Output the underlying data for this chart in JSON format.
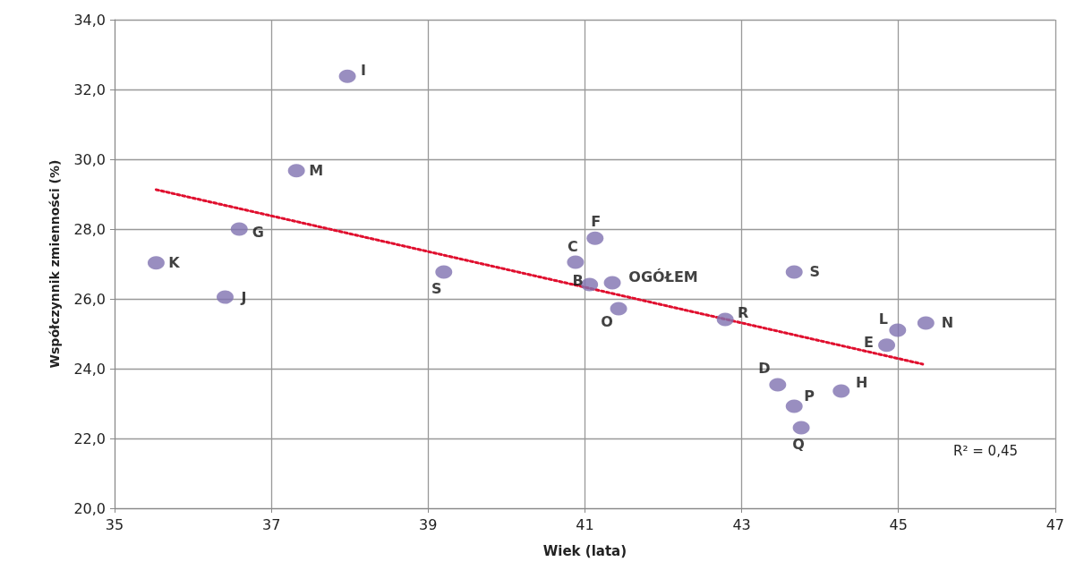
{
  "chart_data": {
    "type": "scatter",
    "xlabel": "Wiek (lata)",
    "ylabel": "Współczynnik zmienności (%)",
    "xlim": [
      35,
      47
    ],
    "xticks": [
      35,
      37,
      39,
      41,
      43,
      45,
      47
    ],
    "ylim": [
      20,
      34
    ],
    "yticks": [
      {
        "value": 20,
        "label": "20,0"
      },
      {
        "value": 22,
        "label": "22,0"
      },
      {
        "value": 24,
        "label": "24,0"
      },
      {
        "value": 26,
        "label": "26,0"
      },
      {
        "value": 28,
        "label": "28,0"
      },
      {
        "value": 30,
        "label": "30,0"
      },
      {
        "value": 32,
        "label": "32,0"
      },
      {
        "value": 34,
        "label": "34,0"
      }
    ],
    "grid": true,
    "marker": "circle",
    "x": [
      35.53,
      36.41,
      36.59,
      37.32,
      37.97,
      39.2,
      40.88,
      41.13,
      41.06,
      41.35,
      41.43,
      42.79,
      43.67,
      43.46,
      43.67,
      43.76,
      44.27,
      44.85,
      44.99,
      45.35
    ],
    "series": [
      {
        "color": "#7f72b0",
        "values": [
          27.03,
          26.05,
          28.0,
          29.67,
          32.38,
          26.77,
          27.05,
          27.74,
          26.41,
          26.46,
          25.72,
          25.41,
          26.77,
          23.54,
          22.92,
          22.31,
          23.36,
          24.67,
          25.1,
          25.31
        ]
      },
      {
        "type": "line",
        "color": "#e0102f",
        "line_style": "dotted",
        "marker": "none",
        "x": [
          35.53,
          45.31
        ],
        "values": [
          29.13,
          24.13
        ]
      }
    ],
    "annotations": [
      {
        "text": "K",
        "x": 35.53,
        "y": 27.03
      },
      {
        "text": "J",
        "x": 36.41,
        "y": 26.05
      },
      {
        "text": "G",
        "x": 36.59,
        "y": 28.0
      },
      {
        "text": "M",
        "x": 37.32,
        "y": 29.67
      },
      {
        "text": "I",
        "x": 37.97,
        "y": 32.38
      },
      {
        "text": "S",
        "x": 39.2,
        "y": 26.77
      },
      {
        "text": "C",
        "x": 40.88,
        "y": 27.05
      },
      {
        "text": "F",
        "x": 41.13,
        "y": 27.74
      },
      {
        "text": "B",
        "x": 41.06,
        "y": 26.41
      },
      {
        "text": "OGÓŁEM",
        "x": 41.35,
        "y": 26.46
      },
      {
        "text": "O",
        "x": 41.43,
        "y": 25.72
      },
      {
        "text": "R",
        "x": 42.79,
        "y": 25.41
      },
      {
        "text": "S",
        "x": 43.67,
        "y": 26.77
      },
      {
        "text": "D",
        "x": 43.46,
        "y": 23.54
      },
      {
        "text": "P",
        "x": 43.67,
        "y": 22.92
      },
      {
        "text": "Q",
        "x": 43.76,
        "y": 22.31
      },
      {
        "text": "H",
        "x": 44.27,
        "y": 23.36
      },
      {
        "text": "E",
        "x": 44.85,
        "y": 24.67
      },
      {
        "text": "L",
        "x": 44.99,
        "y": 25.1
      },
      {
        "text": "N",
        "x": 45.35,
        "y": 25.31
      },
      "R² = 0,45"
    ]
  }
}
